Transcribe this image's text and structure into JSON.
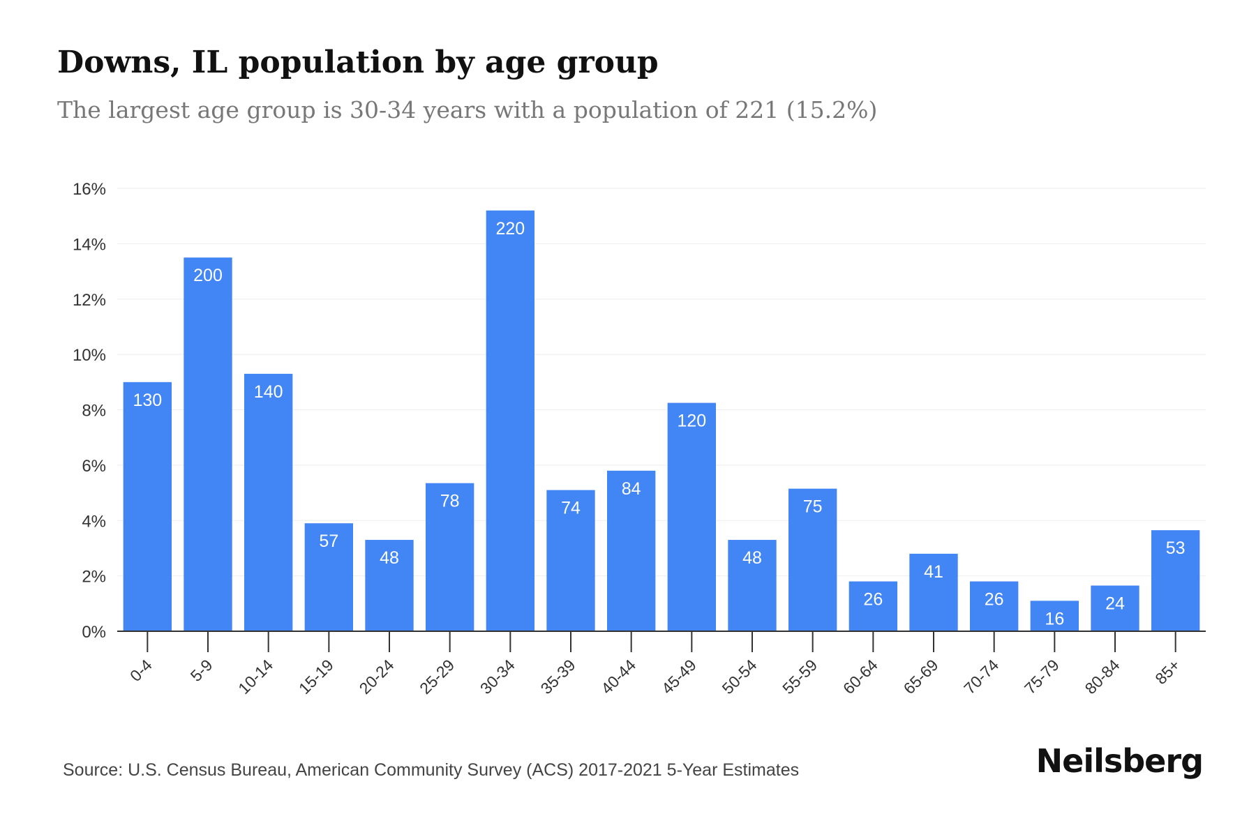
{
  "title": "Downs, IL population by age group",
  "subtitle": "The largest age group is 30-34 years with a population of 221 (15.2%)",
  "source": "Source: U.S. Census Bureau, American Community Survey (ACS) 2017-2021 5-Year Estimates",
  "brand": "Neilsberg",
  "colors": {
    "bar": "#4285f4",
    "bar_label": "#ffffff",
    "grid": "#eeeeee",
    "axis": "#333333",
    "tick_text": "#333333"
  },
  "chart_data": {
    "type": "bar",
    "categories": [
      "0-4",
      "5-9",
      "10-14",
      "15-19",
      "20-24",
      "25-29",
      "30-34",
      "35-39",
      "40-44",
      "45-49",
      "50-54",
      "55-59",
      "60-64",
      "65-69",
      "70-74",
      "75-79",
      "80-84",
      "85+"
    ],
    "values": [
      9.0,
      13.5,
      9.3,
      3.9,
      3.3,
      5.35,
      15.2,
      5.1,
      5.8,
      8.25,
      3.3,
      5.15,
      1.8,
      2.8,
      1.8,
      1.1,
      1.65,
      3.65
    ],
    "labels": [
      "130",
      "200",
      "140",
      "57",
      "48",
      "78",
      "220",
      "74",
      "84",
      "120",
      "48",
      "75",
      "26",
      "41",
      "26",
      "16",
      "24",
      "53"
    ],
    "ylim": [
      0,
      16
    ],
    "yticks": [
      "0%",
      "2%",
      "4%",
      "6%",
      "8%",
      "10%",
      "12%",
      "14%",
      "16%"
    ],
    "grid": true,
    "legend": "none"
  }
}
